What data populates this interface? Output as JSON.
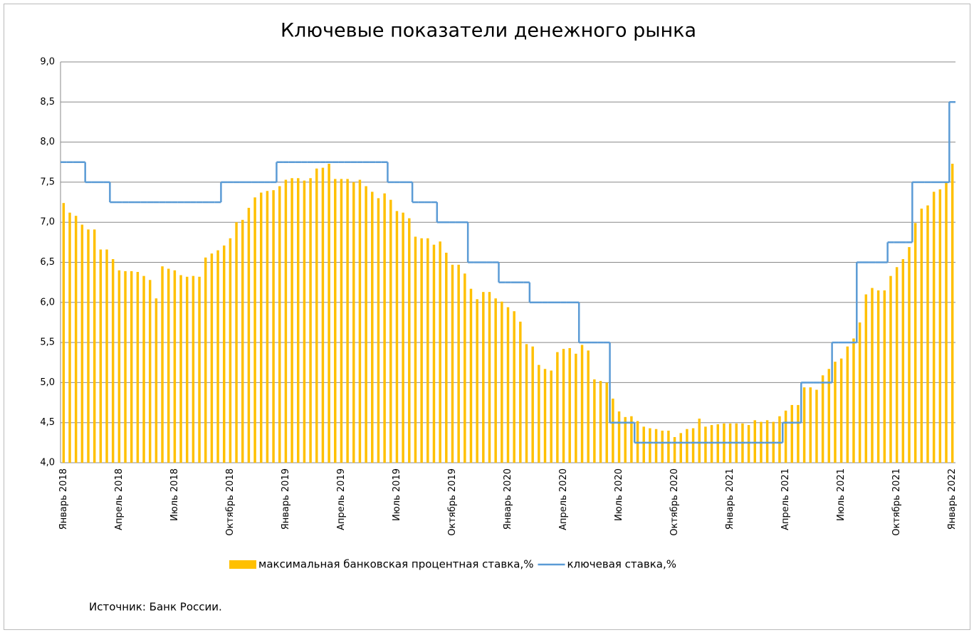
{
  "chart_data": {
    "type": "bar_line",
    "title": "Ключевые показатели денежного рынка",
    "annotation": "Источник: Банк России.",
    "categories": [
      "Январь 2018",
      null,
      null,
      null,
      null,
      null,
      null,
      null,
      null,
      "Апрель 2018",
      null,
      null,
      null,
      null,
      null,
      null,
      null,
      null,
      "Июль 2018",
      null,
      null,
      null,
      null,
      null,
      null,
      null,
      null,
      "Октябрь 2018",
      null,
      null,
      null,
      null,
      null,
      null,
      null,
      null,
      "Январь 2019",
      null,
      null,
      null,
      null,
      null,
      null,
      null,
      null,
      "Апрель 2019",
      null,
      null,
      null,
      null,
      null,
      null,
      null,
      null,
      "Июль 2019",
      null,
      null,
      null,
      null,
      null,
      null,
      null,
      null,
      "Октябрь 2019",
      null,
      null,
      null,
      null,
      null,
      null,
      null,
      null,
      "Январь 2020",
      null,
      null,
      null,
      null,
      null,
      null,
      null,
      null,
      "Апрель 2020",
      null,
      null,
      null,
      null,
      null,
      null,
      null,
      null,
      "Июль 2020",
      null,
      null,
      null,
      null,
      null,
      null,
      null,
      null,
      "Октябрь 2020",
      null,
      null,
      null,
      null,
      null,
      null,
      null,
      null,
      "Январь 2021",
      null,
      null,
      null,
      null,
      null,
      null,
      null,
      null,
      "Апрель 2021",
      null,
      null,
      null,
      null,
      null,
      null,
      null,
      null,
      "Июль 2021",
      null,
      null,
      null,
      null,
      null,
      null,
      null,
      null,
      "Октябрь 2021",
      null,
      null,
      null,
      null,
      null,
      null,
      null,
      null,
      "Январь 2022"
    ],
    "series": [
      {
        "name": "максимальная банковская процентная ставка,%",
        "type": "bar",
        "color": "#ffc000",
        "values": [
          7.24,
          7.12,
          7.08,
          6.97,
          6.91,
          6.91,
          6.66,
          6.66,
          6.54,
          6.4,
          6.39,
          6.39,
          6.38,
          6.33,
          6.28,
          6.05,
          6.45,
          6.42,
          6.4,
          6.34,
          6.32,
          6.33,
          6.32,
          6.56,
          6.61,
          6.65,
          6.71,
          6.8,
          7.0,
          7.03,
          7.18,
          7.31,
          7.37,
          7.39,
          7.4,
          7.45,
          7.53,
          7.55,
          7.55,
          7.52,
          7.55,
          7.67,
          7.68,
          7.73,
          7.54,
          7.54,
          7.54,
          7.5,
          7.53,
          7.45,
          7.38,
          7.3,
          7.36,
          7.28,
          7.14,
          7.12,
          7.05,
          6.82,
          6.8,
          6.8,
          6.72,
          6.76,
          6.62,
          6.47,
          6.47,
          6.36,
          6.17,
          6.04,
          6.13,
          6.13,
          6.05,
          6.01,
          5.94,
          5.89,
          5.76,
          5.48,
          5.45,
          5.22,
          5.17,
          5.15,
          5.38,
          5.42,
          5.43,
          5.36,
          5.47,
          5.4,
          5.04,
          5.02,
          5.0,
          4.8,
          4.64,
          4.57,
          4.58,
          4.52,
          4.45,
          4.43,
          4.42,
          4.4,
          4.4,
          4.32,
          4.37,
          4.42,
          4.43,
          4.55,
          4.45,
          4.47,
          4.48,
          4.49,
          4.49,
          4.49,
          4.49,
          4.47,
          4.53,
          4.51,
          4.53,
          4.51,
          4.58,
          4.65,
          4.72,
          4.72,
          4.94,
          4.94,
          4.91,
          5.09,
          5.17,
          5.26,
          5.3,
          5.45,
          5.55,
          5.75,
          6.1,
          6.18,
          6.15,
          6.15,
          6.33,
          6.44,
          6.54,
          6.69,
          6.99,
          7.17,
          7.21,
          7.38,
          7.41,
          7.49,
          7.73
        ]
      },
      {
        "name": "ключевая ставка,%",
        "type": "line",
        "color": "#5b9bd5",
        "values": [
          7.75,
          7.75,
          7.75,
          7.75,
          7.5,
          7.5,
          7.5,
          7.5,
          7.25,
          7.25,
          7.25,
          7.25,
          7.25,
          7.25,
          7.25,
          7.25,
          7.25,
          7.25,
          7.25,
          7.25,
          7.25,
          7.25,
          7.25,
          7.25,
          7.25,
          7.25,
          7.5,
          7.5,
          7.5,
          7.5,
          7.5,
          7.5,
          7.5,
          7.5,
          7.5,
          7.75,
          7.75,
          7.75,
          7.75,
          7.75,
          7.75,
          7.75,
          7.75,
          7.75,
          7.75,
          7.75,
          7.75,
          7.75,
          7.75,
          7.75,
          7.75,
          7.75,
          7.75,
          7.5,
          7.5,
          7.5,
          7.5,
          7.25,
          7.25,
          7.25,
          7.25,
          7.0,
          7.0,
          7.0,
          7.0,
          7.0,
          6.5,
          6.5,
          6.5,
          6.5,
          6.5,
          6.25,
          6.25,
          6.25,
          6.25,
          6.25,
          6.0,
          6.0,
          6.0,
          6.0,
          6.0,
          6.0,
          6.0,
          6.0,
          5.5,
          5.5,
          5.5,
          5.5,
          5.5,
          4.5,
          4.5,
          4.5,
          4.5,
          4.25,
          4.25,
          4.25,
          4.25,
          4.25,
          4.25,
          4.25,
          4.25,
          4.25,
          4.25,
          4.25,
          4.25,
          4.25,
          4.25,
          4.25,
          4.25,
          4.25,
          4.25,
          4.25,
          4.25,
          4.25,
          4.25,
          4.25,
          4.25,
          4.5,
          4.5,
          4.5,
          5.0,
          5.0,
          5.0,
          5.0,
          5.0,
          5.5,
          5.5,
          5.5,
          5.5,
          6.5,
          6.5,
          6.5,
          6.5,
          6.5,
          6.75,
          6.75,
          6.75,
          6.75,
          7.5,
          7.5,
          7.5,
          7.5,
          7.5,
          7.5,
          8.5
        ]
      }
    ],
    "ylim": [
      4,
      9
    ],
    "yticks": [
      {
        "value": 4,
        "label": "4,0"
      },
      {
        "value": 4.5,
        "label": "4,5"
      },
      {
        "value": 5,
        "label": "5,0"
      },
      {
        "value": 5.5,
        "label": "5,5"
      },
      {
        "value": 6,
        "label": "6,0"
      },
      {
        "value": 6.5,
        "label": "6,5"
      },
      {
        "value": 7,
        "label": "7,0"
      },
      {
        "value": 7.5,
        "label": "7,5"
      },
      {
        "value": 8,
        "label": "8,0"
      },
      {
        "value": 8.5,
        "label": "8,5"
      },
      {
        "value": 9,
        "label": "9,0"
      }
    ],
    "grid": true
  }
}
